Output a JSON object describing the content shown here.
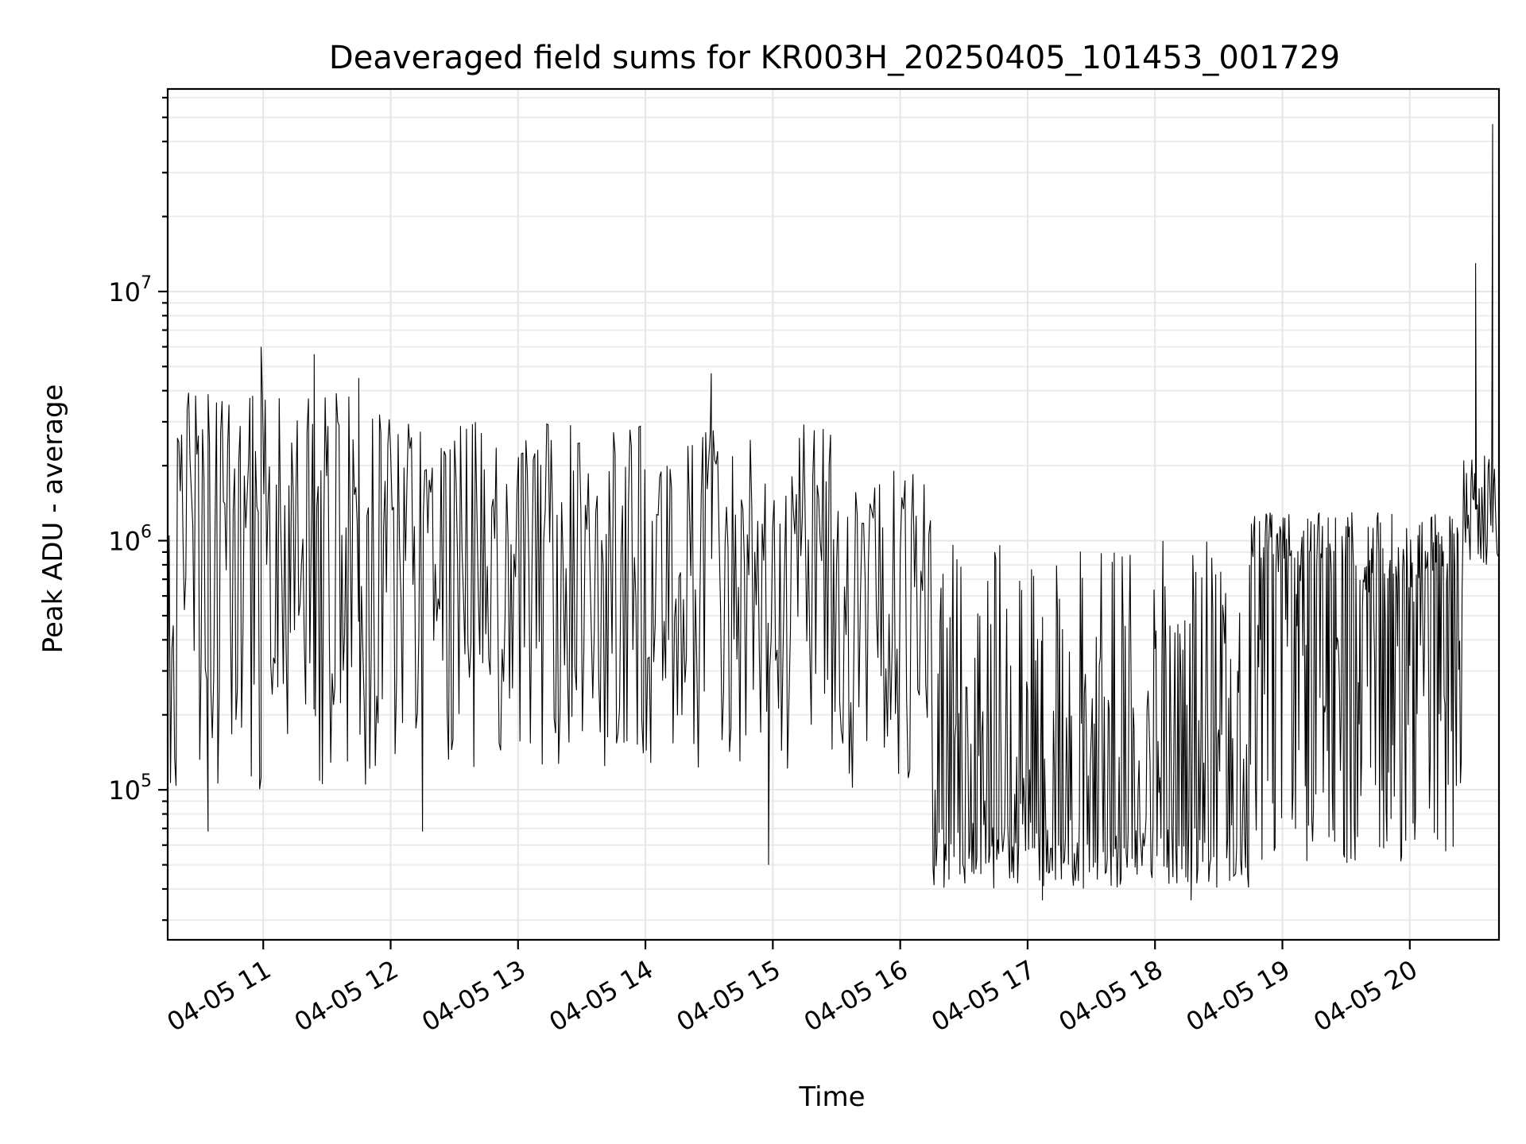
{
  "chart_data": {
    "type": "line",
    "title": "Deaveraged field sums for KR003H_20250405_101453_001729",
    "xlabel": "Time",
    "ylabel": "Peak ADU - average",
    "y_scale": "log",
    "ylim": [
      25000,
      65000000
    ],
    "xlim": [
      "2025-04-05 10:15",
      "2025-04-05 20:42"
    ],
    "grid": true,
    "x_ticks": [
      {
        "value": "2025-04-05 11:00",
        "label": "04-05 11"
      },
      {
        "value": "2025-04-05 12:00",
        "label": "04-05 12"
      },
      {
        "value": "2025-04-05 13:00",
        "label": "04-05 13"
      },
      {
        "value": "2025-04-05 14:00",
        "label": "04-05 14"
      },
      {
        "value": "2025-04-05 15:00",
        "label": "04-05 15"
      },
      {
        "value": "2025-04-05 16:00",
        "label": "04-05 16"
      },
      {
        "value": "2025-04-05 17:00",
        "label": "04-05 17"
      },
      {
        "value": "2025-04-05 18:00",
        "label": "04-05 18"
      },
      {
        "value": "2025-04-05 19:00",
        "label": "04-05 19"
      },
      {
        "value": "2025-04-05 20:00",
        "label": "04-05 20"
      }
    ],
    "y_ticks": [
      {
        "value": 100000,
        "base": "10",
        "exp": "5"
      },
      {
        "value": 1000000,
        "base": "10",
        "exp": "6"
      },
      {
        "value": 10000000,
        "base": "10",
        "exp": "7"
      }
    ],
    "series": [
      {
        "color": "#000000",
        "segments": [
          {
            "start": "2025-04-05 10:15",
            "end": "2025-04-05 12:00",
            "low": 100000,
            "high": 4000000,
            "median": 900000,
            "n": 160
          },
          {
            "start": "2025-04-05 12:00",
            "end": "2025-04-05 15:30",
            "low": 120000,
            "high": 3000000,
            "median": 700000,
            "n": 300
          },
          {
            "start": "2025-04-05 15:30",
            "end": "2025-04-05 16:15",
            "low": 100000,
            "high": 2000000,
            "median": 600000,
            "n": 60
          },
          {
            "start": "2025-04-05 16:15",
            "end": "2025-04-05 18:45",
            "low": 40000,
            "high": 1000000,
            "median": 80000,
            "n": 320
          },
          {
            "start": "2025-04-05 18:45",
            "end": "2025-04-05 20:25",
            "low": 50000,
            "high": 1300000,
            "median": 600000,
            "n": 260
          },
          {
            "start": "2025-04-05 20:25",
            "end": "2025-04-05 20:42",
            "low": 800000,
            "high": 2200000,
            "median": 1300000,
            "n": 40
          }
        ],
        "peaks": [
          {
            "x": "2025-04-05 10:59",
            "y": 6000000
          },
          {
            "x": "2025-04-05 11:24",
            "y": 5600000
          },
          {
            "x": "2025-04-05 11:45",
            "y": 4500000
          },
          {
            "x": "2025-04-05 14:31",
            "y": 4700000
          },
          {
            "x": "2025-04-05 20:31",
            "y": 13000000
          },
          {
            "x": "2025-04-05 20:39",
            "y": 47000000
          }
        ],
        "troughs": [
          {
            "x": "2025-04-05 10:34",
            "y": 68000.0
          },
          {
            "x": "2025-04-05 12:15",
            "y": 68000
          },
          {
            "x": "2025-04-05 14:58",
            "y": 50000
          },
          {
            "x": "2025-04-05 17:07",
            "y": 36000
          },
          {
            "x": "2025-04-05 18:17",
            "y": 36000
          }
        ]
      }
    ]
  }
}
